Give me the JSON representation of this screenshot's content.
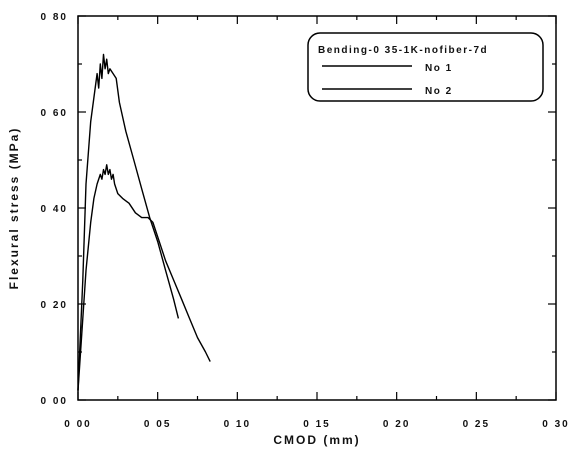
{
  "chart_data": {
    "type": "line",
    "title": "",
    "xlabel": "CMOD (mm)",
    "ylabel": "Flexural stress (MPa)",
    "xlim": [
      0,
      0.3
    ],
    "ylim": [
      0,
      0.8
    ],
    "x_ticks": [
      0,
      0.05,
      0.1,
      0.15,
      0.2,
      0.25,
      0.3
    ],
    "x_tick_labels": [
      "0 00",
      "0 05",
      "0 10",
      "0 15",
      "0 20",
      "0 25",
      "0 30"
    ],
    "y_ticks": [
      0,
      0.2,
      0.4,
      0.6,
      0.8
    ],
    "y_tick_labels": [
      "0 00",
      "0 20",
      "0 40",
      "0 60",
      "0 80"
    ],
    "grid": false,
    "legend_placement": "top-right",
    "legend_title": "Bending-0 35-1K-nofiber-7d",
    "series": [
      {
        "name": "No 1",
        "color": "#000000",
        "x": [
          0,
          0.003,
          0.005,
          0.008,
          0.01,
          0.012,
          0.013,
          0.014,
          0.015,
          0.016,
          0.017,
          0.018,
          0.019,
          0.02,
          0.022,
          0.024,
          0.026,
          0.03,
          0.035,
          0.04,
          0.045,
          0.05,
          0.055,
          0.06,
          0.063
        ],
        "y": [
          0.02,
          0.25,
          0.45,
          0.58,
          0.63,
          0.68,
          0.65,
          0.7,
          0.67,
          0.72,
          0.69,
          0.71,
          0.68,
          0.69,
          0.68,
          0.67,
          0.62,
          0.56,
          0.5,
          0.44,
          0.38,
          0.33,
          0.27,
          0.21,
          0.17
        ]
      },
      {
        "name": "No 2",
        "color": "#000000",
        "x": [
          0,
          0.003,
          0.005,
          0.008,
          0.01,
          0.012,
          0.014,
          0.015,
          0.016,
          0.017,
          0.018,
          0.019,
          0.02,
          0.021,
          0.022,
          0.023,
          0.025,
          0.028,
          0.032,
          0.036,
          0.04,
          0.044,
          0.047,
          0.05,
          0.055,
          0.06,
          0.065,
          0.07,
          0.075,
          0.08,
          0.083
        ],
        "y": [
          0.02,
          0.17,
          0.27,
          0.37,
          0.42,
          0.45,
          0.47,
          0.46,
          0.48,
          0.47,
          0.49,
          0.47,
          0.48,
          0.46,
          0.47,
          0.45,
          0.43,
          0.42,
          0.41,
          0.39,
          0.38,
          0.38,
          0.37,
          0.34,
          0.29,
          0.25,
          0.21,
          0.17,
          0.13,
          0.1,
          0.08
        ]
      }
    ]
  }
}
